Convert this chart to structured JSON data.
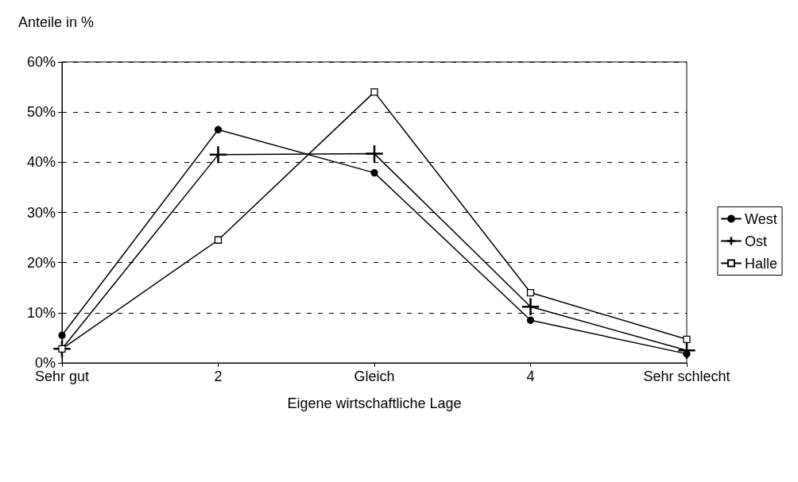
{
  "chart_data": {
    "type": "line",
    "ylabel": "Anteile in %",
    "xlabel": "Eigene wirtschaftliche Lage",
    "categories": [
      "Sehr gut",
      "2",
      "Gleich",
      "4",
      "Sehr schlecht"
    ],
    "series": [
      {
        "name": "West",
        "color": "#000000",
        "marker": "circle",
        "values": [
          5.5,
          46.5,
          37.9,
          8.5,
          1.8
        ]
      },
      {
        "name": "Ost",
        "color": "#000000",
        "marker": "cross",
        "values": [
          2.8,
          41.5,
          41.7,
          11.2,
          2.5
        ]
      },
      {
        "name": "Halle",
        "color": "#000000",
        "marker": "square",
        "values": [
          2.8,
          24.5,
          54.0,
          14.0,
          4.7
        ]
      }
    ],
    "ylim": [
      0,
      60
    ],
    "yticks": [
      {
        "value": 0,
        "label": "0%"
      },
      {
        "value": 10,
        "label": "10%"
      },
      {
        "value": 20,
        "label": "20%"
      },
      {
        "value": 30,
        "label": "30%"
      },
      {
        "value": 40,
        "label": "40%"
      },
      {
        "value": 50,
        "label": "50%"
      },
      {
        "value": 60,
        "label": "60%"
      }
    ],
    "grid": "y",
    "legend": "right",
    "line_style": "solid"
  }
}
